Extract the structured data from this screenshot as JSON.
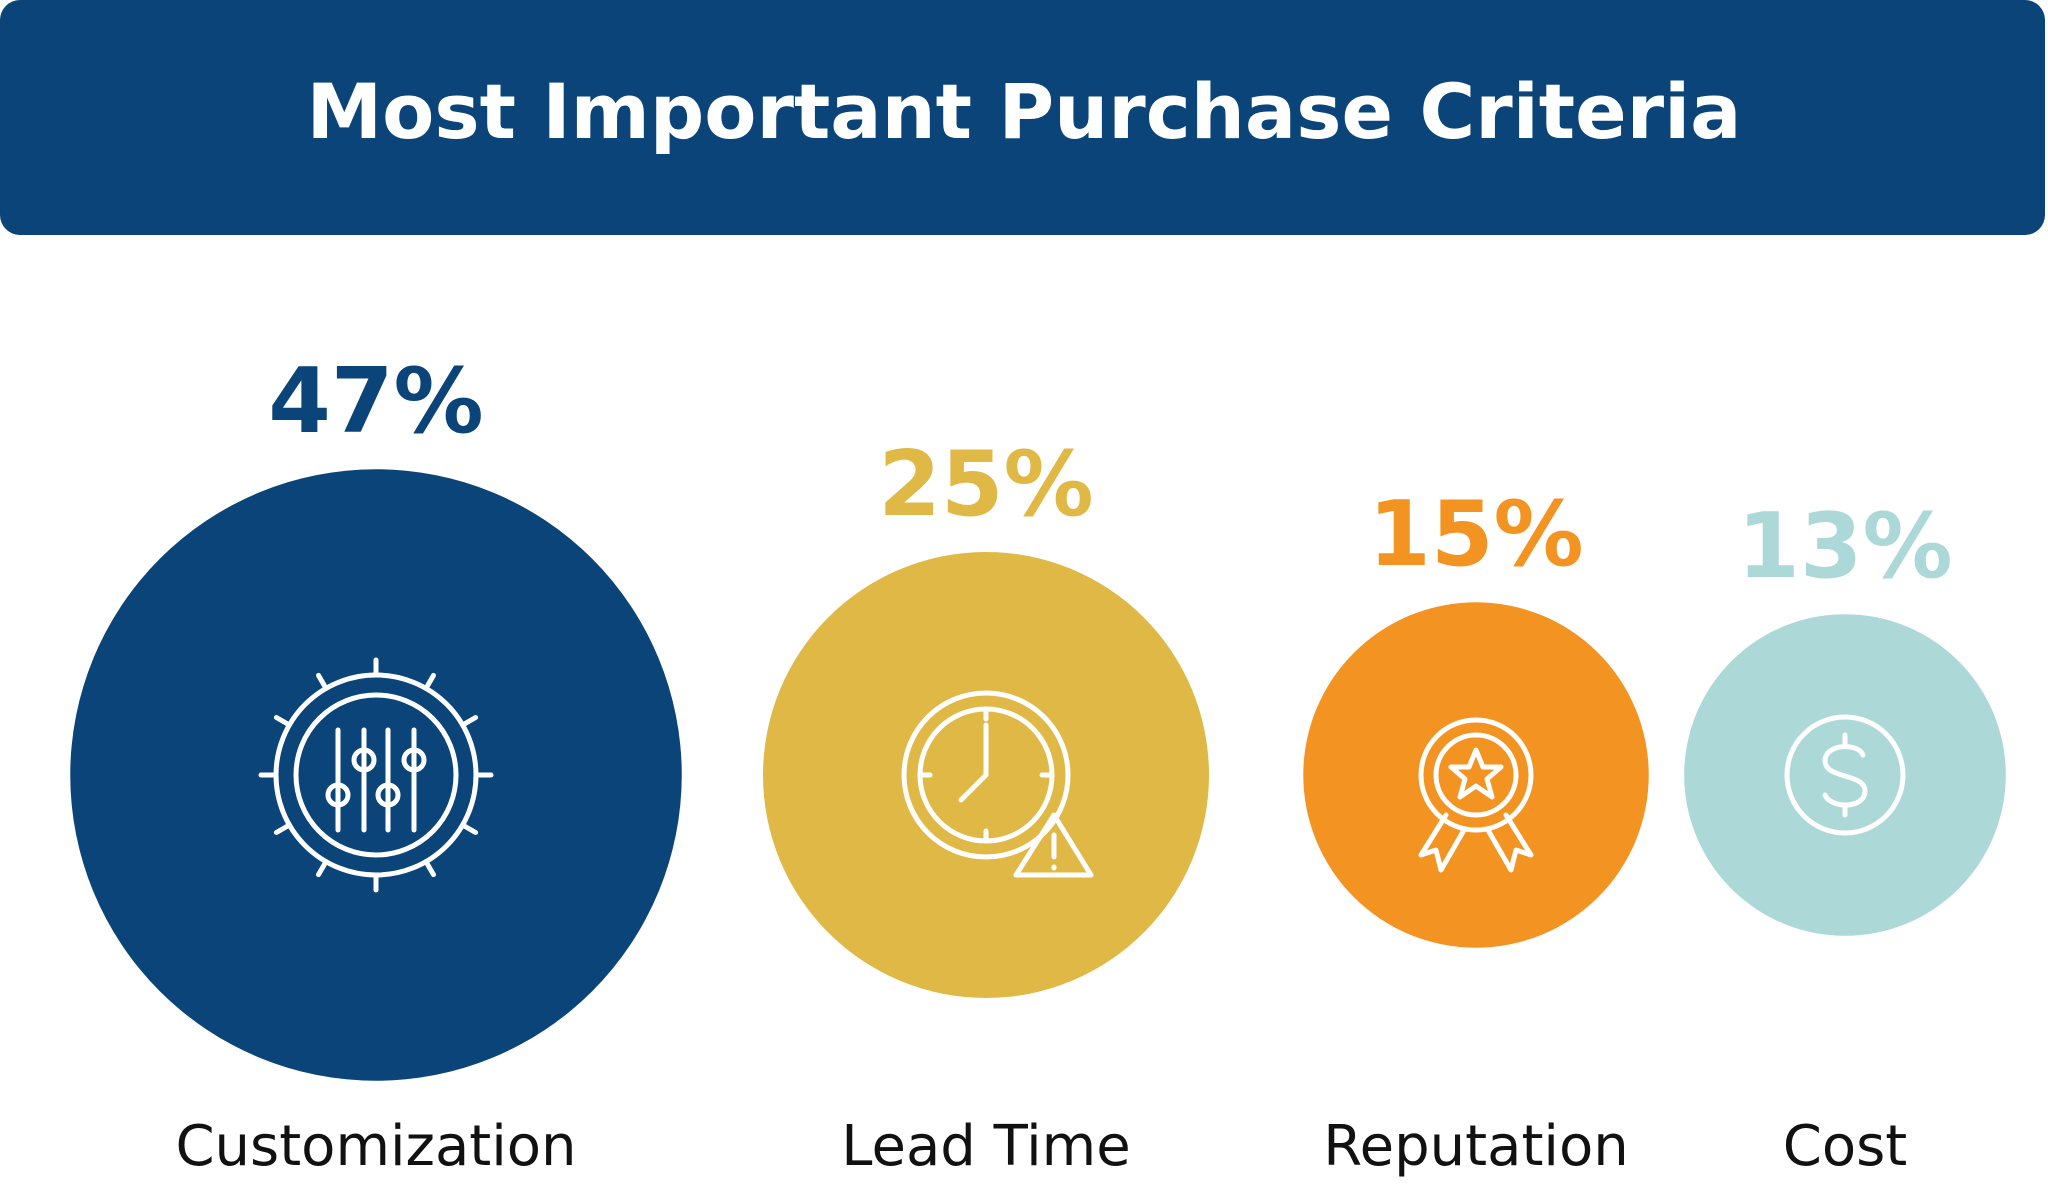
{
  "chart_data": {
    "type": "bubble",
    "title": "Most Important Purchase Criteria",
    "categories": [
      "Customization",
      "Lead Time",
      "Reputation",
      "Cost"
    ],
    "values": [
      47,
      25,
      15,
      13
    ],
    "value_labels": [
      "47%",
      "25%",
      "15%",
      "13%"
    ],
    "colors": [
      "#0a4478",
      "#e0b845",
      "#f39322",
      "#acd8d8"
    ]
  }
}
